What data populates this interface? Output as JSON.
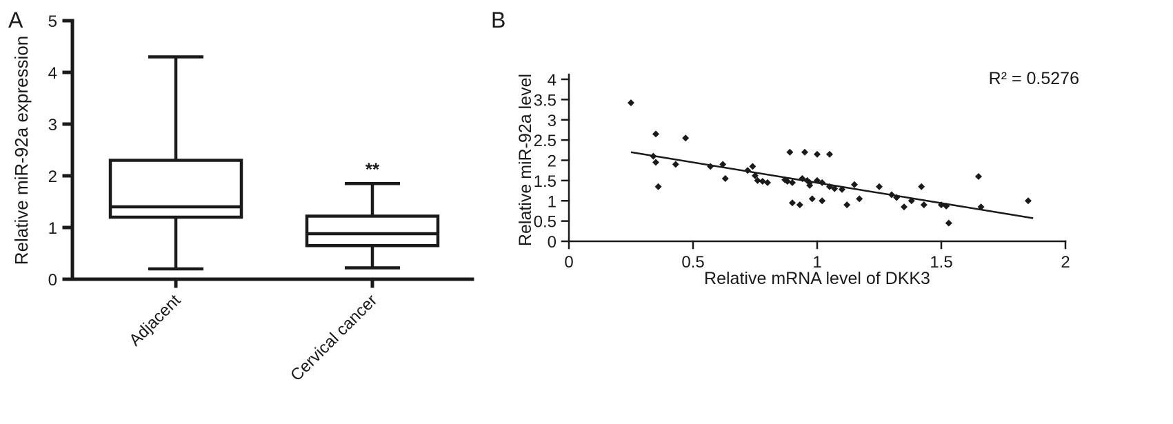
{
  "figure": {
    "panels": [
      {
        "label": "A"
      },
      {
        "label": "B"
      }
    ]
  },
  "chart_data": [
    {
      "type": "boxplot",
      "panel": "A",
      "ylabel": "Relative miR-92a expression",
      "ylim": [
        0,
        5
      ],
      "yticks": [
        0,
        1,
        2,
        3,
        4,
        5
      ],
      "categories": [
        "Adjacent",
        "Cervical cancer"
      ],
      "boxes": [
        {
          "category": "Adjacent",
          "whisker_low": 0.2,
          "q1": 1.2,
          "median": 1.4,
          "q3": 2.3,
          "whisker_high": 4.3,
          "annotation": ""
        },
        {
          "category": "Cervical cancer",
          "whisker_low": 0.22,
          "q1": 0.65,
          "median": 0.88,
          "q3": 1.22,
          "whisker_high": 1.85,
          "annotation": "**"
        }
      ],
      "color": "#1a1a1a"
    },
    {
      "type": "scatter",
      "panel": "B",
      "xlabel": "Relative mRNA level of DKK3",
      "ylabel": "Relative miR-92a level",
      "xlim": [
        0,
        2
      ],
      "ylim": [
        0,
        4
      ],
      "xticks": [
        0,
        0.5,
        1,
        1.5,
        2
      ],
      "yticks": [
        0,
        0.5,
        1,
        1.5,
        2,
        2.5,
        3,
        3.5,
        4
      ],
      "annotation": "R² = 0.5276",
      "legend": "none",
      "grid": false,
      "points": [
        [
          0.25,
          3.42
        ],
        [
          0.35,
          2.65
        ],
        [
          0.34,
          2.1
        ],
        [
          0.35,
          1.95
        ],
        [
          0.36,
          1.35
        ],
        [
          0.43,
          1.9
        ],
        [
          0.47,
          2.55
        ],
        [
          0.57,
          1.85
        ],
        [
          0.62,
          1.9
        ],
        [
          0.63,
          1.55
        ],
        [
          0.72,
          1.75
        ],
        [
          0.74,
          1.85
        ],
        [
          0.75,
          1.62
        ],
        [
          0.76,
          1.5
        ],
        [
          0.78,
          1.48
        ],
        [
          0.8,
          1.45
        ],
        [
          0.87,
          1.52
        ],
        [
          0.88,
          1.48
        ],
        [
          0.89,
          2.2
        ],
        [
          0.9,
          1.45
        ],
        [
          0.9,
          0.95
        ],
        [
          0.93,
          0.9
        ],
        [
          0.94,
          1.55
        ],
        [
          0.95,
          2.2
        ],
        [
          0.96,
          1.5
        ],
        [
          0.97,
          1.45
        ],
        [
          0.97,
          1.38
        ],
        [
          0.98,
          1.05
        ],
        [
          1.0,
          2.15
        ],
        [
          1.0,
          1.5
        ],
        [
          1.02,
          1.45
        ],
        [
          1.02,
          1.0
        ],
        [
          1.05,
          2.15
        ],
        [
          1.05,
          1.35
        ],
        [
          1.07,
          1.3
        ],
        [
          1.1,
          1.28
        ],
        [
          1.12,
          0.9
        ],
        [
          1.15,
          1.4
        ],
        [
          1.17,
          1.05
        ],
        [
          1.25,
          1.35
        ],
        [
          1.3,
          1.15
        ],
        [
          1.32,
          1.08
        ],
        [
          1.35,
          0.85
        ],
        [
          1.38,
          1.0
        ],
        [
          1.42,
          1.35
        ],
        [
          1.43,
          0.9
        ],
        [
          1.5,
          0.9
        ],
        [
          1.52,
          0.87
        ],
        [
          1.53,
          0.45
        ],
        [
          1.65,
          1.6
        ],
        [
          1.66,
          0.85
        ],
        [
          1.85,
          1.0
        ]
      ],
      "trendline": {
        "x1": 0.25,
        "y1": 2.2,
        "x2": 1.87,
        "y2": 0.57
      },
      "color": "#1a1a1a"
    }
  ]
}
